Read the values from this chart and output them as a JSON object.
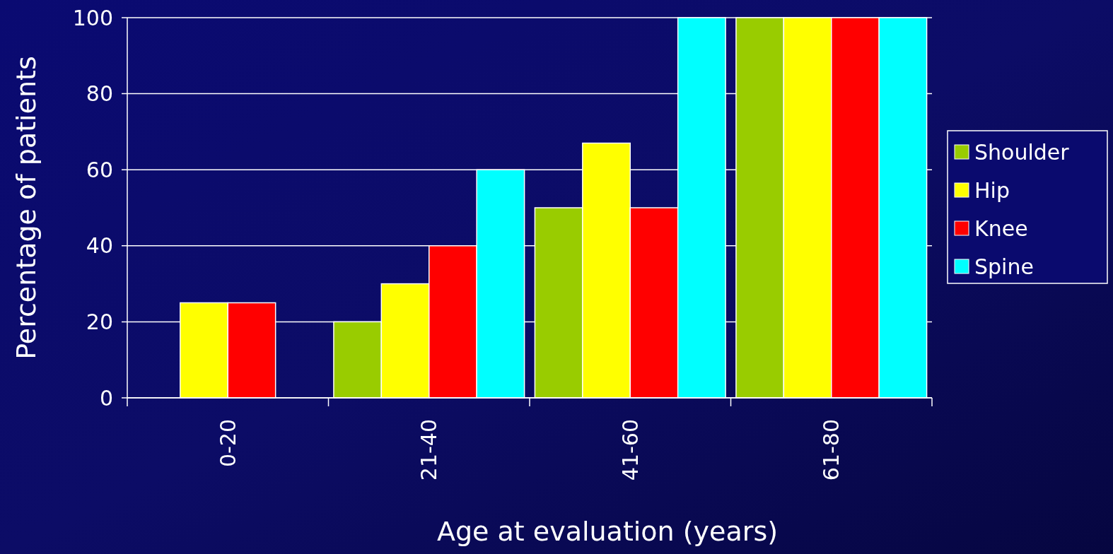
{
  "chart_data": {
    "type": "bar",
    "xlabel": "Age at evaluation (years)",
    "ylabel": "Percentage of patients",
    "categories": [
      "0-20",
      "21-40",
      "41-60",
      "61-80"
    ],
    "series": [
      {
        "name": "Shoulder",
        "color": "#99cc00",
        "values": [
          0,
          20,
          50,
          100
        ]
      },
      {
        "name": "Hip",
        "color": "#ffff00",
        "values": [
          25,
          30,
          67,
          100
        ]
      },
      {
        "name": "Knee",
        "color": "#ff0000",
        "values": [
          25,
          40,
          50,
          100
        ]
      },
      {
        "name": "Spine",
        "color": "#00ffff",
        "values": [
          0,
          60,
          100,
          100
        ]
      }
    ],
    "ylim": [
      0,
      100
    ],
    "yticks": [
      0,
      20,
      40,
      60,
      80,
      100
    ],
    "grid": "y",
    "legend": "right"
  }
}
